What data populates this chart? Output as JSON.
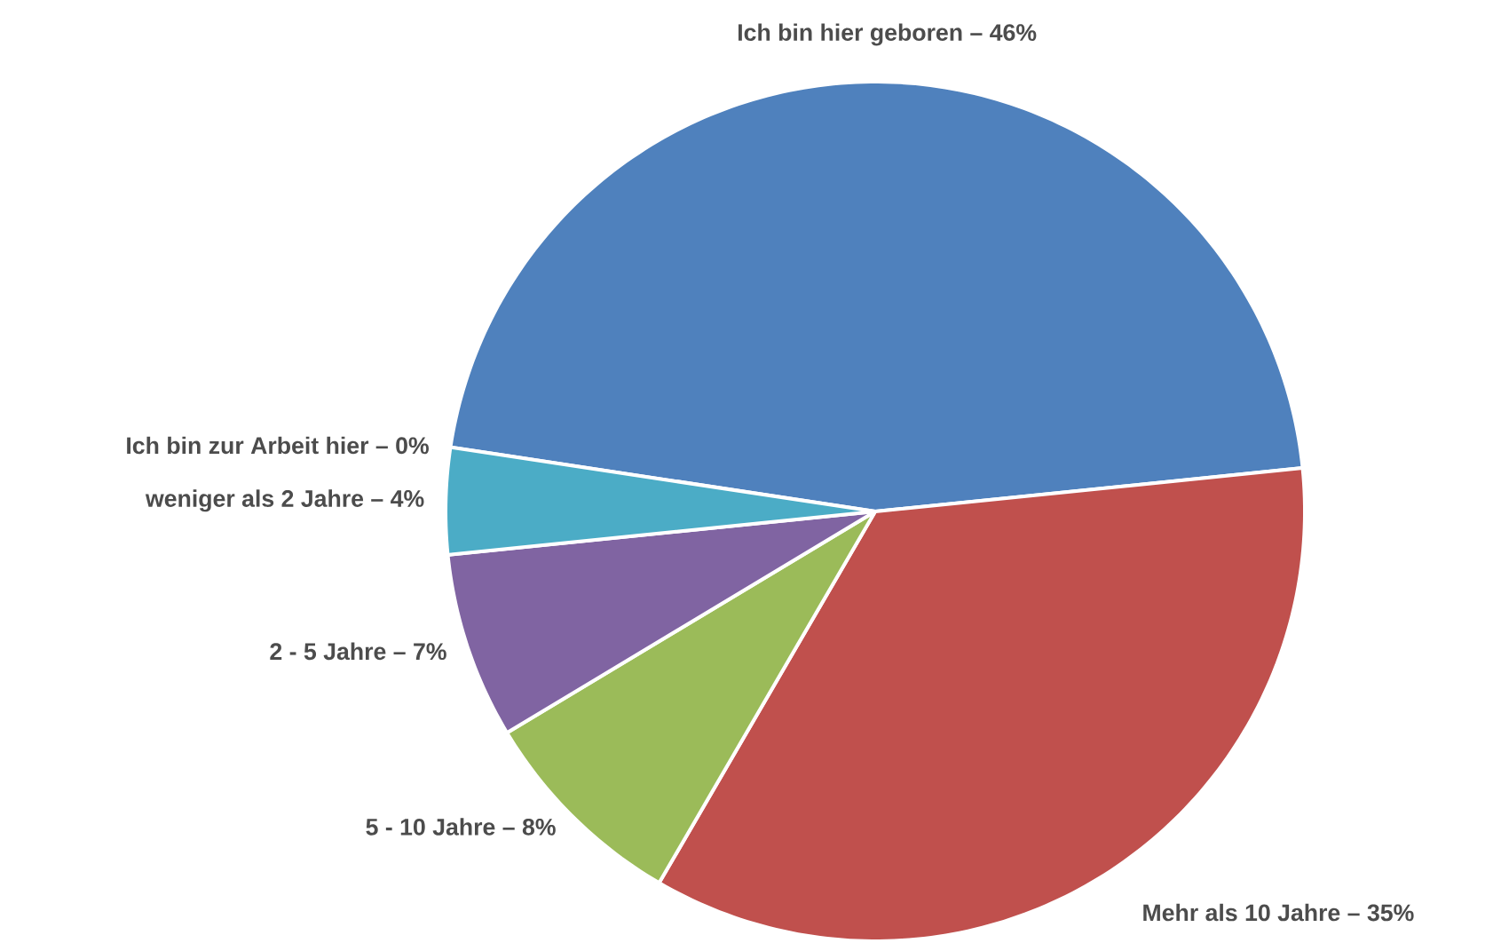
{
  "chart_data": {
    "type": "pie",
    "categories": [
      "Ich bin hier geboren –",
      "Mehr als 10 Jahre –",
      "5 - 10 Jahre –",
      "2 - 5 Jahre –",
      "weniger als 2 Jahre –",
      "Ich bin zur Arbeit hier –"
    ],
    "values": [
      46,
      35,
      8,
      7,
      4,
      0
    ],
    "colors": [
      "#4f81bd",
      "#c0504d",
      "#9bbb59",
      "#8064a2",
      "#4bacc6",
      "#f79646"
    ],
    "value_labels": [
      "46%",
      "35%",
      "8%",
      "7%",
      "4%",
      "0%"
    ]
  }
}
